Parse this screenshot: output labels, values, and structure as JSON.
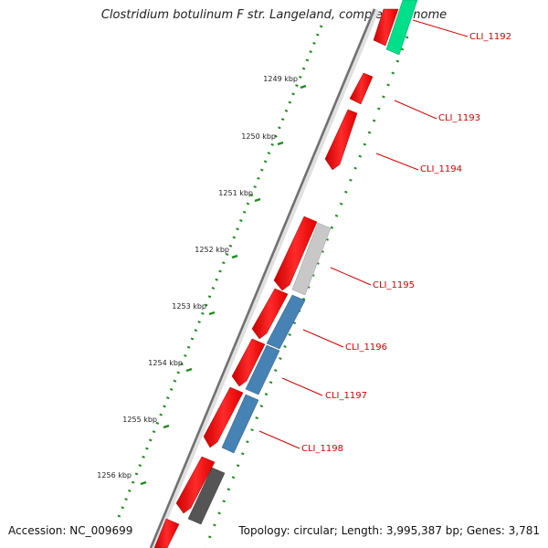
{
  "header": {
    "title": "Clostridium botulinum F str. Langeland, complete genome"
  },
  "footer": {
    "accession": "Accession: NC_009699",
    "summary": "Topology: circular; Length: 3,995,387 bp; Genes: 3,781"
  },
  "ruler": {
    "ticks": [
      "1249 kbp",
      "1250 kbp",
      "1251 kbp",
      "1252 kbp",
      "1253 kbp",
      "1254 kbp",
      "1255 kbp",
      "1256 kbp"
    ]
  },
  "genes": {
    "labels": [
      "CLI_1192",
      "CLI_1193",
      "CLI_1194",
      "CLI_1195",
      "CLI_1196",
      "CLI_1197",
      "CLI_1198"
    ]
  },
  "colors": {
    "forward_gene": "#ff0000",
    "reverse_gene_blue": "#4682b4",
    "reverse_gene_green": "#00e08a",
    "reverse_gene_grey": "#c8c8c8",
    "reverse_gene_dark": "#555555",
    "backbone": "#707070",
    "gc_ticks": "#1e8c1e",
    "label": "#d40000"
  }
}
